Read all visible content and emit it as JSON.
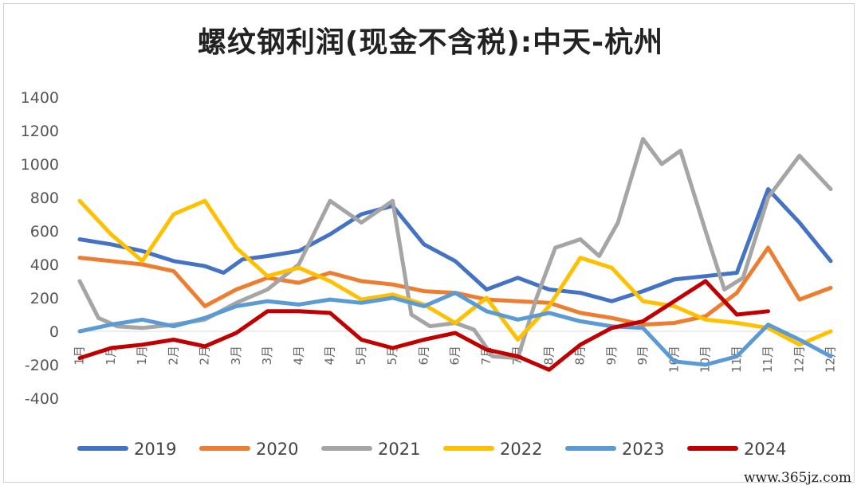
{
  "chart_data": {
    "type": "line",
    "title": "螺纹钢利润(现金不含税):中天-杭州",
    "xlabel": "",
    "ylabel": "",
    "ylim": [
      -400,
      1400
    ],
    "yticks": [
      1400,
      1200,
      1000,
      800,
      600,
      400,
      200,
      0,
      -200,
      -400
    ],
    "x_range": [
      0,
      12
    ],
    "xtick_labels": [
      "1月",
      "1月",
      "1月",
      "2月",
      "2月",
      "3月",
      "3月",
      "4月",
      "4月",
      "5月",
      "5月",
      "6月",
      "6月",
      "7月",
      "7月",
      "8月",
      "8月",
      "9月",
      "9月",
      "10月",
      "10月",
      "11月",
      "11月",
      "12月",
      "12月"
    ],
    "grid": false,
    "legend_position": "bottom",
    "series": [
      {
        "name": "2019",
        "color": "#4472C4",
        "x": [
          0,
          0.5,
          1,
          1.5,
          2,
          2.3,
          2.6,
          3,
          3.5,
          4,
          4.5,
          5,
          5.5,
          6,
          6.5,
          7,
          7.5,
          8,
          8.5,
          9,
          9.5,
          10,
          10.5,
          11,
          11.5,
          12
        ],
        "y": [
          550,
          520,
          480,
          420,
          390,
          350,
          430,
          450,
          480,
          580,
          700,
          750,
          520,
          420,
          250,
          320,
          250,
          230,
          180,
          240,
          310,
          330,
          350,
          850,
          650,
          420
        ]
      },
      {
        "name": "2020",
        "color": "#ED7D31",
        "x": [
          0,
          0.5,
          1,
          1.5,
          2,
          2.5,
          3,
          3.5,
          4,
          4.5,
          5,
          5.5,
          6,
          6.5,
          7,
          7.5,
          8,
          8.5,
          9,
          9.5,
          10,
          10.5,
          11,
          11.5,
          12
        ],
        "y": [
          440,
          420,
          400,
          360,
          150,
          250,
          320,
          290,
          350,
          300,
          280,
          240,
          230,
          190,
          180,
          170,
          110,
          80,
          40,
          50,
          90,
          230,
          500,
          190,
          260
        ]
      },
      {
        "name": "2021",
        "color": "#A5A5A5",
        "x": [
          0,
          0.3,
          0.6,
          1,
          1.5,
          2,
          2.5,
          3,
          3.5,
          4,
          4.5,
          5,
          5.3,
          5.6,
          6,
          6.3,
          6.6,
          7,
          7.3,
          7.6,
          8,
          8.3,
          8.6,
          9,
          9.3,
          9.6,
          10,
          10.3,
          10.6,
          11,
          11.5,
          12
        ],
        "y": [
          300,
          80,
          30,
          20,
          40,
          70,
          170,
          250,
          400,
          780,
          650,
          780,
          100,
          30,
          50,
          10,
          -150,
          -160,
          200,
          500,
          550,
          450,
          650,
          1150,
          1000,
          1080,
          600,
          250,
          320,
          800,
          1050,
          850
        ]
      },
      {
        "name": "2022",
        "color": "#FFC000",
        "x": [
          0,
          0.5,
          1,
          1.5,
          2,
          2.5,
          3,
          3.5,
          4,
          4.5,
          5,
          5.5,
          6,
          6.5,
          7,
          7.5,
          8,
          8.5,
          9,
          9.5,
          10,
          10.5,
          11,
          11.5,
          12
        ],
        "y": [
          780,
          580,
          420,
          700,
          780,
          500,
          330,
          380,
          300,
          190,
          220,
          160,
          50,
          200,
          -50,
          150,
          440,
          380,
          180,
          150,
          70,
          50,
          20,
          -80,
          0
        ]
      },
      {
        "name": "2023",
        "color": "#5B9BD5",
        "x": [
          0,
          0.5,
          1,
          1.5,
          2,
          2.5,
          3,
          3.5,
          4,
          4.5,
          5,
          5.5,
          6,
          6.5,
          7,
          7.5,
          8,
          8.5,
          9,
          9.5,
          10,
          10.5,
          11,
          11.5,
          12
        ],
        "y": [
          0,
          40,
          70,
          30,
          80,
          150,
          180,
          160,
          190,
          170,
          200,
          150,
          230,
          120,
          70,
          110,
          60,
          30,
          20,
          -180,
          -200,
          -150,
          40,
          -50,
          -150
        ]
      },
      {
        "name": "2024",
        "color": "#C00000",
        "x": [
          0,
          0.5,
          1,
          1.5,
          2,
          2.5,
          3,
          3.5,
          4,
          4.5,
          5,
          5.5,
          6,
          6.5,
          7,
          7.5,
          8,
          8.5,
          9,
          9.5,
          10,
          10.5,
          11
        ],
        "y": [
          -160,
          -100,
          -80,
          -50,
          -90,
          -10,
          120,
          120,
          110,
          -50,
          -100,
          -50,
          -10,
          -110,
          -150,
          -230,
          -80,
          20,
          60,
          180,
          300,
          100,
          120
        ]
      }
    ]
  },
  "watermark": "www.365jz.com"
}
